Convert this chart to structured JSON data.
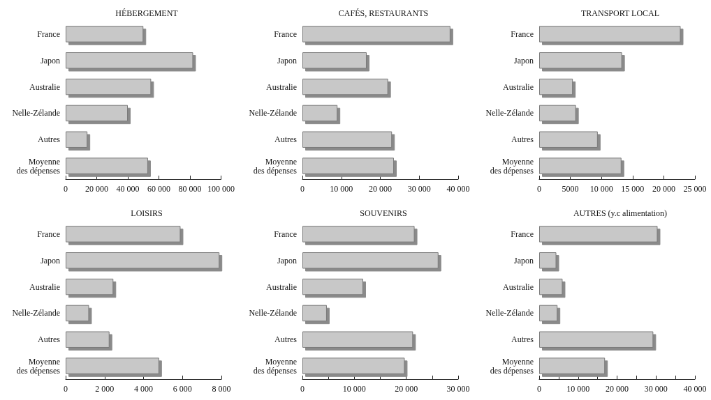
{
  "chart_data": [
    {
      "type": "bar",
      "orientation": "horizontal",
      "title": "HÉBERGEMENT",
      "categories": [
        "France",
        "Japon",
        "Australie",
        "Nelle-Zélande",
        "Autres",
        "Moyenne\ndes dépenses"
      ],
      "values": [
        50000,
        82000,
        55000,
        40000,
        14000,
        53000
      ],
      "color": "#c8c8c8",
      "xlim": [
        0,
        100000
      ],
      "xticks": [
        {
          "value": 0,
          "label": "0"
        },
        {
          "value": 20000,
          "label": "20 000"
        },
        {
          "value": 40000,
          "label": "40 000"
        },
        {
          "value": 60000,
          "label": "60 000"
        },
        {
          "value": 80000,
          "label": "80 000"
        },
        {
          "value": 100000,
          "label": "100 000"
        }
      ],
      "grid": false
    },
    {
      "type": "bar",
      "orientation": "horizontal",
      "title": "CAFÉS, RESTAURANTS",
      "categories": [
        "France",
        "Japon",
        "Australie",
        "Nelle-Zélande",
        "Autres",
        "Moyenne\ndes dépenses"
      ],
      "values": [
        38000,
        16500,
        22000,
        9000,
        23000,
        23500
      ],
      "color": "#c8c8c8",
      "xlim": [
        0,
        40000
      ],
      "xticks": [
        {
          "value": 0,
          "label": "0"
        },
        {
          "value": 10000,
          "label": "10 000"
        },
        {
          "value": 20000,
          "label": "20 000"
        },
        {
          "value": 30000,
          "label": "30 000"
        },
        {
          "value": 40000,
          "label": "40 000"
        }
      ],
      "grid": false
    },
    {
      "type": "bar",
      "orientation": "horizontal",
      "title": "TRANSPORT LOCAL",
      "categories": [
        "France",
        "Japon",
        "Australie",
        "Nelle-Zélande",
        "Autres",
        "Moyenne\ndes dépenses"
      ],
      "values": [
        22700,
        13300,
        5400,
        5900,
        9400,
        13200
      ],
      "color": "#c8c8c8",
      "xlim": [
        0,
        25000
      ],
      "xticks": [
        {
          "value": 0,
          "label": "0"
        },
        5000,
        {
          "value": 10000,
          "label": "10 000"
        },
        {
          "value": 15000,
          "label": "15 000"
        },
        {
          "value": 20000,
          "label": "20 000"
        },
        {
          "value": 25000,
          "label": "25 000"
        }
      ],
      "grid": false
    },
    {
      "type": "bar",
      "orientation": "horizontal",
      "title": "LOISIRS",
      "categories": [
        "France",
        "Japon",
        "Australie",
        "Nelle-Zélande",
        "Autres",
        "Moyenne\ndes dépenses"
      ],
      "values": [
        5900,
        7900,
        2450,
        1200,
        2250,
        4800
      ],
      "color": "#c8c8c8",
      "xlim": [
        0,
        8000
      ],
      "xticks": [
        {
          "value": 0,
          "label": "0"
        },
        {
          "value": 2000,
          "label": "2 000"
        },
        {
          "value": 4000,
          "label": "4 000"
        },
        {
          "value": 6000,
          "label": "6 000"
        },
        {
          "value": 8000,
          "label": "8 000"
        }
      ],
      "grid": false
    },
    {
      "type": "bar",
      "orientation": "horizontal",
      "title": "SOUVENIRS",
      "categories": [
        "France",
        "Japon",
        "Australie",
        "Nelle-Zélande",
        "Autres",
        "Moyenne\ndes dépenses"
      ],
      "values": [
        21600,
        26200,
        11700,
        4700,
        21300,
        19700
      ],
      "color": "#c8c8c8",
      "xlim": [
        0,
        30000
      ],
      "xticks": [
        {
          "value": 0,
          "label": "0"
        },
        {
          "value": 5000,
          "label": null
        },
        {
          "value": 10000,
          "label": "10 000"
        },
        {
          "value": 15000,
          "label": null
        },
        {
          "value": 20000,
          "label": "20 000"
        },
        {
          "value": 25000,
          "label": null
        },
        {
          "value": 30000,
          "label": "30 000"
        }
      ],
      "grid": false
    },
    {
      "type": "bar",
      "orientation": "horizontal",
      "title": "AUTRES (y.c alimentation)",
      "categories": [
        "France",
        "Japon",
        "Australie",
        "Nelle-Zélande",
        "Autres",
        "Moyenne\ndes dépenses"
      ],
      "values": [
        30400,
        4400,
        6000,
        4700,
        29300,
        16900
      ],
      "color": "#c8c8c8",
      "xlim": [
        0,
        40000
      ],
      "xticks": [
        {
          "value": 0,
          "label": "0"
        },
        {
          "value": 5000,
          "label": null
        },
        {
          "value": 10000,
          "label": "10 000"
        },
        {
          "value": 15000,
          "label": null
        },
        {
          "value": 20000,
          "label": "20 000"
        },
        {
          "value": 25000,
          "label": null
        },
        {
          "value": 30000,
          "label": "30 000"
        },
        {
          "value": 35000,
          "label": null
        },
        {
          "value": 40000,
          "label": "40 000"
        }
      ],
      "grid": false
    }
  ]
}
